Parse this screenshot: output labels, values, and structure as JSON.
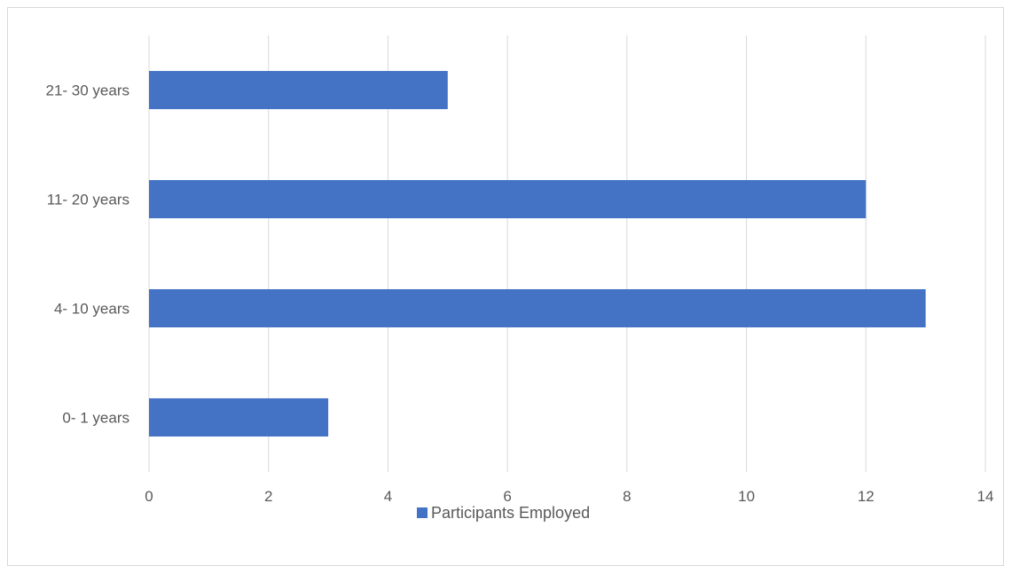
{
  "chart_data": {
    "type": "bar",
    "orientation": "horizontal",
    "categories": [
      "0- 1 years",
      "4- 10 years",
      "11- 20 years",
      "21- 30 years"
    ],
    "series": [
      {
        "name": "Participants Employed",
        "values": [
          3,
          13,
          12,
          5
        ],
        "color": "#4472c4"
      }
    ],
    "title": "",
    "xlabel": "",
    "ylabel": "",
    "xlim": [
      0,
      14
    ],
    "x_ticks": [
      0,
      2,
      4,
      6,
      8,
      10,
      12,
      14
    ],
    "grid": "vertical",
    "legend": "bottom-center"
  }
}
